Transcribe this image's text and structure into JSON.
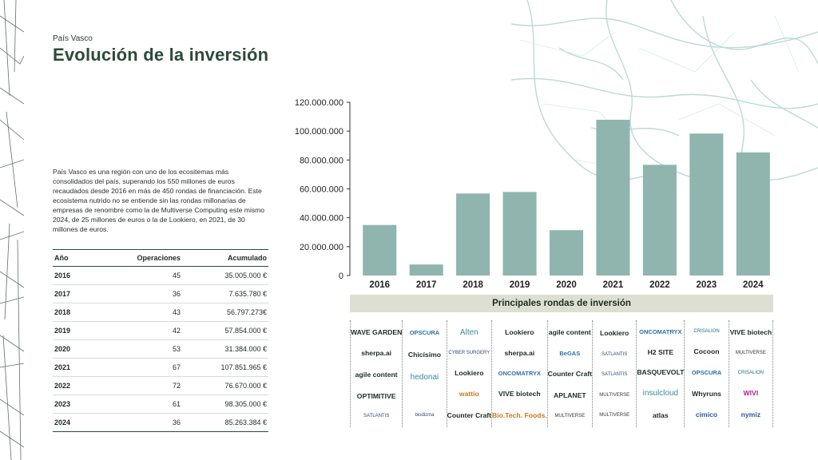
{
  "header": {
    "kicker": "País Vasco",
    "title": "Evolución de la inversión"
  },
  "intro": "País Vasco es una región con uno de los ecositemas más consolidados del país, superando los 550 millones de euros recaudados desde 2016 en más de 450 rondas de financiación.  Este ecosistema nutrido no se entiende sin las rondas millonarias de empresas de renombre como la de Multiverse Computing este mismo 2024, de 25 millones de euros o la de Lookiero, en 2021, de 30 millones de euros.",
  "table": {
    "headers": [
      "Año",
      "Operaciones",
      "Acumulado"
    ],
    "rows": [
      [
        "2016",
        "45",
        "35.005.000 €"
      ],
      [
        "2017",
        "36",
        "7.635.780 €"
      ],
      [
        "2018",
        "43",
        "56.797.273€"
      ],
      [
        "2019",
        "42",
        "57.854.000 €"
      ],
      [
        "2020",
        "53",
        "31.384.000 €"
      ],
      [
        "2021",
        "67",
        "107.851.965 €"
      ],
      [
        "2022",
        "72",
        "76.670.000 €"
      ],
      [
        "2023",
        "61",
        "98.305.000 €"
      ],
      [
        "2024",
        "36",
        "85.263.384 €"
      ]
    ]
  },
  "chart_data": {
    "type": "bar",
    "categories": [
      "2016",
      "2017",
      "2018",
      "2019",
      "2020",
      "2021",
      "2022",
      "2023",
      "2024"
    ],
    "values": [
      35005000,
      7635780,
      56797273,
      57854000,
      31384000,
      107851965,
      76670000,
      98305000,
      85263384
    ],
    "ylim": [
      0,
      120000000
    ],
    "yticks": [
      0,
      20000000,
      40000000,
      60000000,
      80000000,
      100000000,
      120000000
    ],
    "ytick_labels": [
      "0",
      "20.000.000",
      "40.000.000",
      "60.000.000",
      "80.000.000",
      "100.000.000",
      "120.000.000"
    ],
    "bar_color": "#8fb5ae",
    "grid": false,
    "title": "",
    "xlabel": "",
    "ylabel": ""
  },
  "rounds": {
    "title": "Principales rondas de inversión",
    "logos": [
      [
        "WAVE GARDEN",
        "sherpa.ai",
        "agile content",
        "OPTIMITIVE",
        "SATLANTIS"
      ],
      [
        "OPSCURA",
        "Chicísimo",
        "hedonai",
        "",
        "biodizma"
      ],
      [
        "Alten",
        "CYBER SURGERY",
        "Lookiero",
        "wattio",
        "Counter Craft"
      ],
      [
        "Lookiero",
        "sherpa.ai",
        "ONCOMATRYX",
        "VIVE biotech",
        "Bio.Tech. Foods."
      ],
      [
        "agile content",
        "BeGAS",
        "Counter Craft",
        "APLANET",
        "MULTIVERSE"
      ],
      [
        "Lookiero",
        "SATLANTIS",
        "SATLANTIS",
        "MULTIVERSE",
        "MULTIVERSE"
      ],
      [
        "ONCOMATRYX",
        "H2 SITE",
        "BASQUEVOLT",
        "insulcloud",
        "atlas"
      ],
      [
        "CRISALION",
        "Cocoon",
        "OPSCURA",
        "Whyruns",
        "cimico"
      ],
      [
        "VIVE biotech",
        "MULTIVERSE",
        "CRISALION",
        "WIVI",
        "nymiz"
      ]
    ]
  },
  "colors": {
    "accent": "#2c4a3a",
    "bar": "#8fb5ae",
    "band": "#dcdfd2"
  }
}
